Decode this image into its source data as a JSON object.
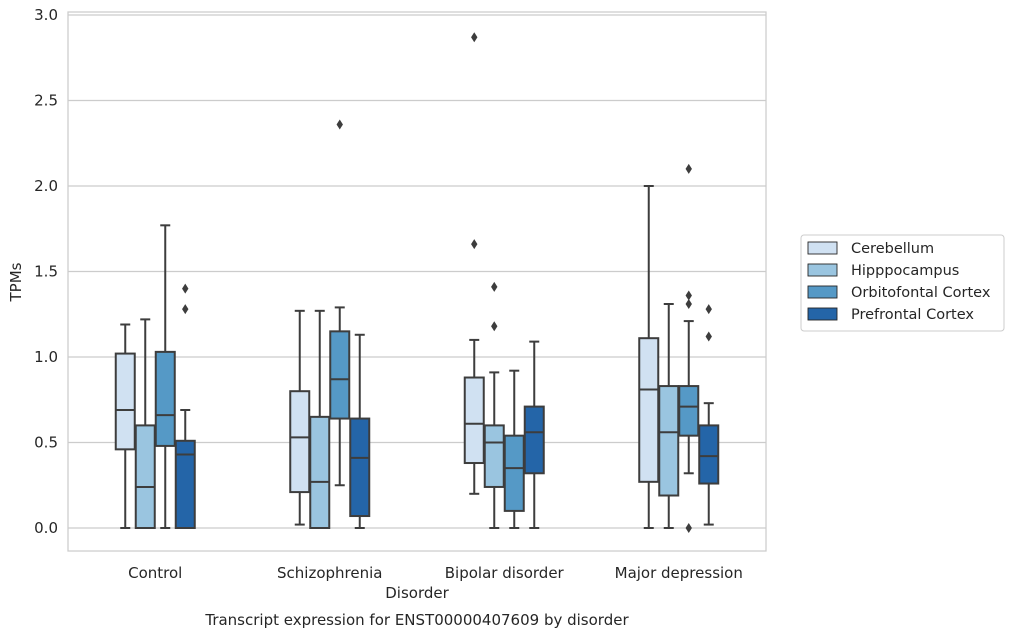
{
  "chart_data": {
    "type": "box",
    "title": "",
    "caption": "Transcript expression for ENST00000407609 by disorder",
    "xlabel": "Disorder",
    "ylabel": "TPMs",
    "ylim": [
      -0.14,
      3.02
    ],
    "yticks": [
      0.0,
      0.5,
      1.0,
      1.5,
      2.0,
      2.5,
      3.0
    ],
    "ytick_labels": [
      "0.0",
      "0.5",
      "1.0",
      "1.5",
      "2.0",
      "2.5",
      "3.0"
    ],
    "grid": "horizontal",
    "legend_position": "right",
    "categories": [
      "Control",
      "Schizophrenia",
      "Bipolar disorder",
      "Major depression"
    ],
    "series": [
      {
        "name": "Cerebellum",
        "color": "#d0e1f2",
        "boxes": [
          {
            "whislo": 0.0,
            "q1": 0.46,
            "med": 0.69,
            "q3": 1.02,
            "whishi": 1.19,
            "fliers": []
          },
          {
            "whislo": 0.02,
            "q1": 0.21,
            "med": 0.53,
            "q3": 0.8,
            "whishi": 1.27,
            "fliers": []
          },
          {
            "whislo": 0.2,
            "q1": 0.38,
            "med": 0.61,
            "q3": 0.88,
            "whishi": 1.1,
            "fliers": [
              1.66,
              2.87
            ]
          },
          {
            "whislo": 0.0,
            "q1": 0.27,
            "med": 0.81,
            "q3": 1.11,
            "whishi": 2.0,
            "fliers": []
          }
        ]
      },
      {
        "name": "Hipppocampus",
        "color": "#9ac5e0",
        "boxes": [
          {
            "whislo": 0.0,
            "q1": 0.0,
            "med": 0.24,
            "q3": 0.6,
            "whishi": 1.22,
            "fliers": []
          },
          {
            "whislo": 0.0,
            "q1": 0.0,
            "med": 0.27,
            "q3": 0.65,
            "whishi": 1.27,
            "fliers": []
          },
          {
            "whislo": 0.0,
            "q1": 0.24,
            "med": 0.5,
            "q3": 0.6,
            "whishi": 0.91,
            "fliers": [
              1.18,
              1.41
            ]
          },
          {
            "whislo": 0.0,
            "q1": 0.19,
            "med": 0.56,
            "q3": 0.83,
            "whishi": 1.31,
            "fliers": []
          }
        ]
      },
      {
        "name": "Orbitofontal Cortex",
        "color": "#5599c6",
        "boxes": [
          {
            "whislo": 0.0,
            "q1": 0.48,
            "med": 0.66,
            "q3": 1.03,
            "whishi": 1.77,
            "fliers": []
          },
          {
            "whislo": 0.25,
            "q1": 0.64,
            "med": 0.87,
            "q3": 1.15,
            "whishi": 1.29,
            "fliers": [
              2.36
            ]
          },
          {
            "whislo": 0.0,
            "q1": 0.1,
            "med": 0.35,
            "q3": 0.54,
            "whishi": 0.92,
            "fliers": []
          },
          {
            "whislo": 0.32,
            "q1": 0.54,
            "med": 0.71,
            "q3": 0.83,
            "whishi": 1.21,
            "fliers": [
              0.0,
              1.31,
              1.36,
              2.1
            ]
          }
        ]
      },
      {
        "name": "Prefrontal Cortex",
        "color": "#2465a8",
        "boxes": [
          {
            "whislo": 0.0,
            "q1": 0.0,
            "med": 0.43,
            "q3": 0.51,
            "whishi": 0.69,
            "fliers": [
              1.28,
              1.4
            ]
          },
          {
            "whislo": 0.0,
            "q1": 0.07,
            "med": 0.41,
            "q3": 0.64,
            "whishi": 1.13,
            "fliers": []
          },
          {
            "whislo": 0.0,
            "q1": 0.32,
            "med": 0.56,
            "q3": 0.71,
            "whishi": 1.09,
            "fliers": []
          },
          {
            "whislo": 0.02,
            "q1": 0.26,
            "med": 0.42,
            "q3": 0.6,
            "whishi": 0.73,
            "fliers": [
              1.12,
              1.28
            ]
          }
        ]
      }
    ]
  }
}
